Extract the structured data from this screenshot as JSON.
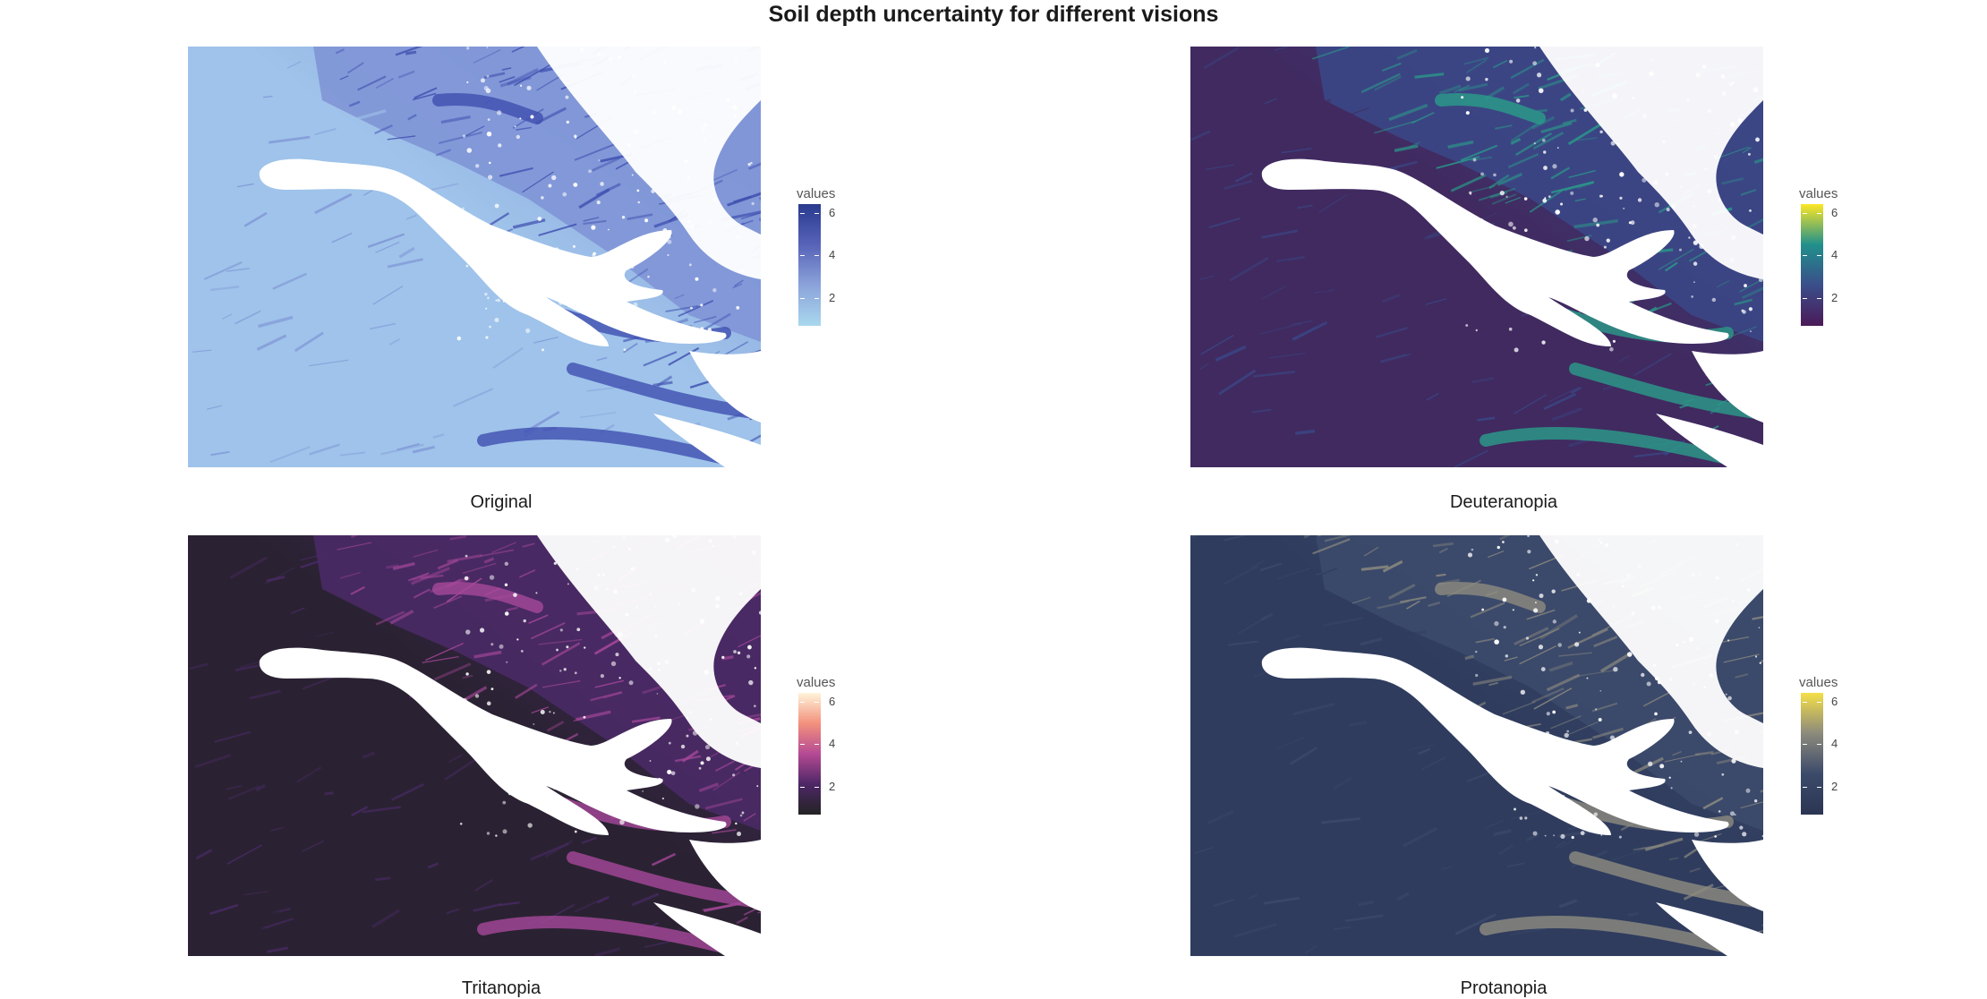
{
  "title": "Soil depth uncertainty for different visions",
  "panels": [
    {
      "caption": "Original",
      "legend": {
        "title": "values",
        "ticks": [
          "6",
          "4",
          "2"
        ],
        "tick_values": [
          6,
          4,
          2
        ],
        "range": [
          0.7,
          6.4
        ],
        "colors": [
          "#a9d8ee",
          "#8ba3da",
          "#5763b8",
          "#293a8e"
        ]
      },
      "map_colors": {
        "background": "#9fc3ea",
        "mid": "#7f95d6",
        "high": "#3f4fb0",
        "channel": "#ffffff"
      }
    },
    {
      "caption": "Deuteranopia",
      "legend": {
        "title": "values",
        "ticks": [
          "6",
          "4",
          "2"
        ],
        "tick_values": [
          6,
          4,
          2
        ],
        "range": [
          0.7,
          6.4
        ],
        "colors": [
          "#4b1a58",
          "#3a4e8a",
          "#21908c",
          "#fde725"
        ]
      },
      "map_colors": {
        "background": "#402a60",
        "mid": "#3b4786",
        "high": "#2a9c8a",
        "channel": "#ffffff"
      }
    },
    {
      "caption": "Tritanopia",
      "legend": {
        "title": "values",
        "ticks": [
          "6",
          "4",
          "2"
        ],
        "tick_values": [
          6,
          4,
          2
        ],
        "range": [
          0.7,
          6.4
        ],
        "colors": [
          "#232323",
          "#4d2766",
          "#b64a94",
          "#f3917d",
          "#fff4d9"
        ]
      },
      "map_colors": {
        "background": "#2a2232",
        "mid": "#4a2a66",
        "high": "#a6489a",
        "channel": "#ffffff"
      }
    },
    {
      "caption": "Protanopia",
      "legend": {
        "title": "values",
        "ticks": [
          "6",
          "4",
          "2"
        ],
        "tick_values": [
          6,
          4,
          2
        ],
        "range": [
          0.7,
          6.4
        ],
        "colors": [
          "#2b3553",
          "#3c4a6a",
          "#8c8a7c",
          "#f4df47"
        ]
      },
      "map_colors": {
        "background": "#2f3c5e",
        "mid": "#3c4a6c",
        "high": "#8e8c80",
        "channel": "#ffffff"
      }
    }
  ]
}
